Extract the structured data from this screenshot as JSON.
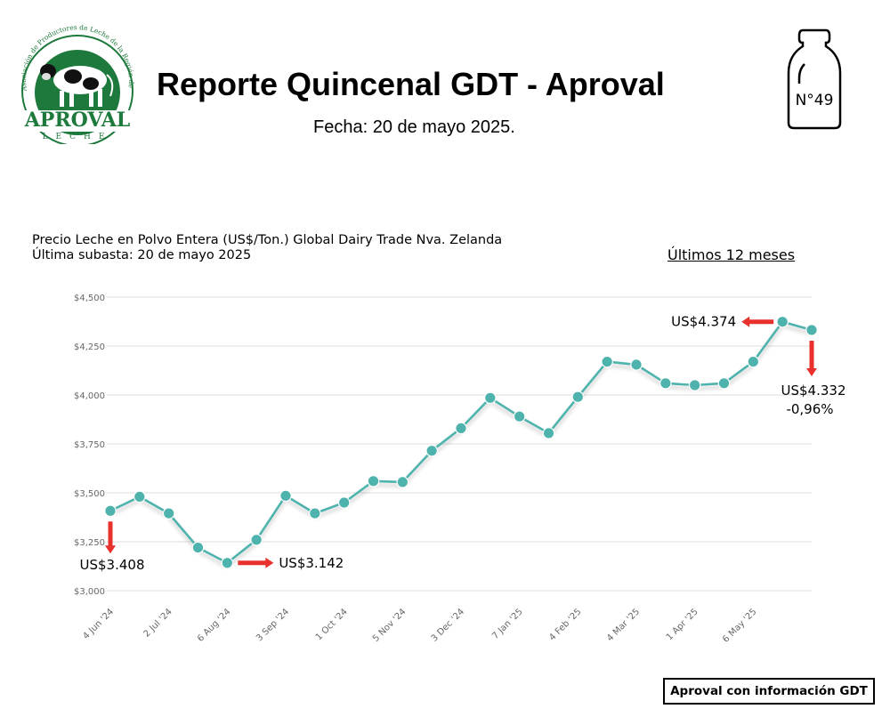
{
  "header": {
    "title": "Reporte Quincenal GDT - Aproval",
    "date": "Fecha: 20 de mayo 2025.",
    "issue": "N°49"
  },
  "logo": {
    "name": "APROVAL",
    "sub": "LECHE",
    "ring_text": "Asociación de Productores de Leche de la Región de Los Ríos",
    "color": "#1e7a3c"
  },
  "chart_data": {
    "type": "line",
    "title_line1": "Precio Leche en Polvo Entera (US$/Ton.) Global Dairy Trade Nva. Zelanda",
    "title_line2": "Última subasta: 20 de mayo 2025",
    "period_label": "Últimos 12 meses",
    "ylim": [
      3000,
      4500
    ],
    "yticks": [
      {
        "v": 3000,
        "label": "$3,000"
      },
      {
        "v": 3250,
        "label": "$3,250"
      },
      {
        "v": 3500,
        "label": "$3,500"
      },
      {
        "v": 3750,
        "label": "$3,750"
      },
      {
        "v": 4000,
        "label": "$4,000"
      },
      {
        "v": 4250,
        "label": "$4,250"
      },
      {
        "v": 4500,
        "label": "$4,500"
      }
    ],
    "xticks": [
      "4 Jun '24",
      "2 Jul '24",
      "6 Aug '24",
      "3 Sep '24",
      "1 Oct '24",
      "5 Nov '24",
      "3 Dec '24",
      "7 Jan '25",
      "4 Feb '25",
      "4 Mar '25",
      "1 Apr '25",
      "6 May '25"
    ],
    "values": [
      3408,
      3480,
      3395,
      3220,
      3142,
      3260,
      3485,
      3395,
      3450,
      3560,
      3555,
      3715,
      3830,
      3985,
      3890,
      3805,
      3990,
      4170,
      4155,
      4060,
      4050,
      4060,
      4170,
      4374,
      4332
    ],
    "line_color": "#4fb3ad",
    "annotations": {
      "first": "US$3.408",
      "min": "US$3.142",
      "max": "US$4.374",
      "last": "US$4.332",
      "last_change": "-0,96%"
    },
    "arrow_color": "#e8312c"
  },
  "footer": {
    "source": "Aproval con información GDT"
  }
}
